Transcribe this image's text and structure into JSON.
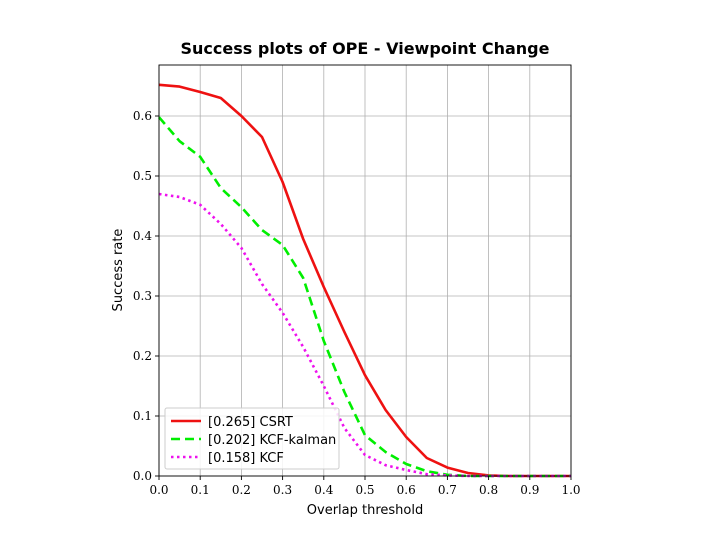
{
  "chart_data": {
    "type": "line",
    "title": "Success plots of OPE - Viewpoint Change",
    "xlabel": "Overlap threshold",
    "ylabel": "Success rate",
    "xlim": [
      0.0,
      1.0
    ],
    "ylim": [
      0.0,
      0.685
    ],
    "xticks": [
      0.0,
      0.1,
      0.2,
      0.3,
      0.4,
      0.5,
      0.6,
      0.7,
      0.8,
      0.9,
      1.0
    ],
    "xtick_labels": [
      "0.0",
      "0.1",
      "0.2",
      "0.3",
      "0.4",
      "0.5",
      "0.6",
      "0.7",
      "0.8",
      "0.9",
      "1.0"
    ],
    "yticks": [
      0.0,
      0.1,
      0.2,
      0.3,
      0.4,
      0.5,
      0.6
    ],
    "ytick_labels": [
      "0.0",
      "0.1",
      "0.2",
      "0.3",
      "0.4",
      "0.5",
      "0.6"
    ],
    "grid": true,
    "legend_position": "lower-left",
    "x": [
      0.0,
      0.05,
      0.1,
      0.15,
      0.2,
      0.25,
      0.3,
      0.35,
      0.4,
      0.45,
      0.5,
      0.55,
      0.6,
      0.65,
      0.7,
      0.75,
      0.8,
      0.85,
      0.9,
      0.95,
      1.0
    ],
    "series": [
      {
        "name": "[0.265] CSRT",
        "color": "#ee1111",
        "style": "solid",
        "values": [
          0.652,
          0.649,
          0.64,
          0.63,
          0.6,
          0.565,
          0.49,
          0.395,
          0.315,
          0.24,
          0.168,
          0.11,
          0.065,
          0.03,
          0.014,
          0.005,
          0.001,
          0.0,
          0.0,
          0.0,
          0.0
        ]
      },
      {
        "name": "[0.202] KCF-kalman",
        "color": "#00ee00",
        "style": "dashed",
        "values": [
          0.598,
          0.558,
          0.532,
          0.48,
          0.448,
          0.41,
          0.385,
          0.33,
          0.225,
          0.14,
          0.068,
          0.04,
          0.02,
          0.008,
          0.002,
          0.0,
          0.0,
          0.0,
          0.0,
          0.0,
          0.0
        ]
      },
      {
        "name": "[0.158] KCF",
        "color": "#ee11ee",
        "style": "dotted",
        "values": [
          0.47,
          0.465,
          0.452,
          0.42,
          0.38,
          0.32,
          0.272,
          0.215,
          0.15,
          0.08,
          0.035,
          0.018,
          0.01,
          0.003,
          0.001,
          0.0,
          0.0,
          0.0,
          0.0,
          0.0,
          0.0
        ]
      }
    ]
  }
}
